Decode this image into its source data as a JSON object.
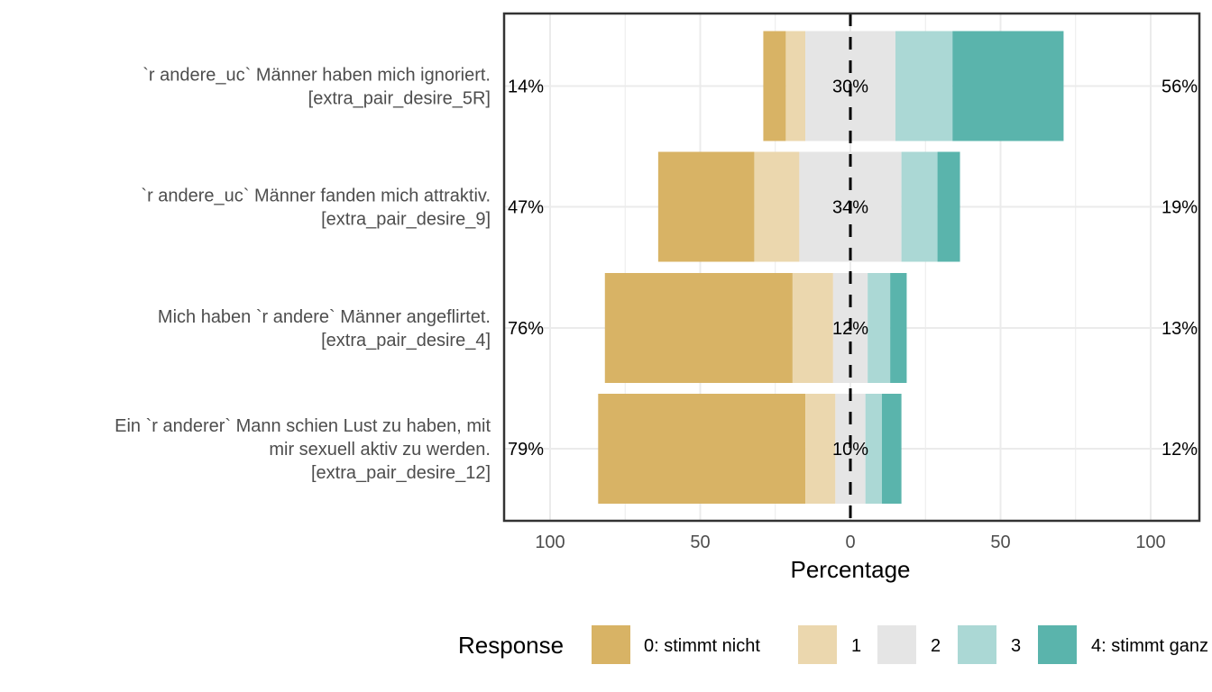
{
  "chart_data": {
    "type": "bar",
    "subtype": "diverging-stacked-likert",
    "xlabel": "Percentage",
    "xlim": [
      -100,
      100
    ],
    "xticks": [
      -100,
      -50,
      0,
      50,
      100
    ],
    "xtick_labels": [
      "100",
      "50",
      "0",
      "50",
      "100"
    ],
    "grid": true,
    "legend": {
      "title": "Response",
      "position": "bottom",
      "entries": [
        "0: stimmt nicht",
        "1",
        "2",
        "3",
        "4: stimmt ganz"
      ]
    },
    "colors": [
      "#D8B365",
      "#EBD7AE",
      "#E5E5E5",
      "#ABD8D5",
      "#5AB4AC"
    ],
    "items": [
      {
        "label_lines": [
          "`r andere_uc` Männer haben mich ignoriert.",
          "[extra_pair_desire_5R]"
        ],
        "values": [
          7.5,
          6.5,
          30,
          19,
          37
        ],
        "left_pct": "14%",
        "center_pct": "30%",
        "right_pct": "56%"
      },
      {
        "label_lines": [
          "`r andere_uc` Männer fanden mich attraktiv.",
          "[extra_pair_desire_9]"
        ],
        "values": [
          32,
          15,
          34,
          12,
          7.5
        ],
        "left_pct": "47%",
        "center_pct": "34%",
        "right_pct": "19%"
      },
      {
        "label_lines": [
          "Mich haben `r andere` Männer angeflirtet.",
          "[extra_pair_desire_4]"
        ],
        "values": [
          62.5,
          13.5,
          11.5,
          7.5,
          5.5
        ],
        "left_pct": "76%",
        "center_pct": "12%",
        "right_pct": "13%"
      },
      {
        "label_lines": [
          "Ein `r anderer` Mann schien Lust zu haben, mit",
          "mir sexuell aktiv zu werden.",
          "[extra_pair_desire_12]"
        ],
        "values": [
          69,
          10,
          10,
          5.5,
          6.5
        ],
        "left_pct": "79%",
        "center_pct": "10%",
        "right_pct": "12%"
      }
    ]
  }
}
